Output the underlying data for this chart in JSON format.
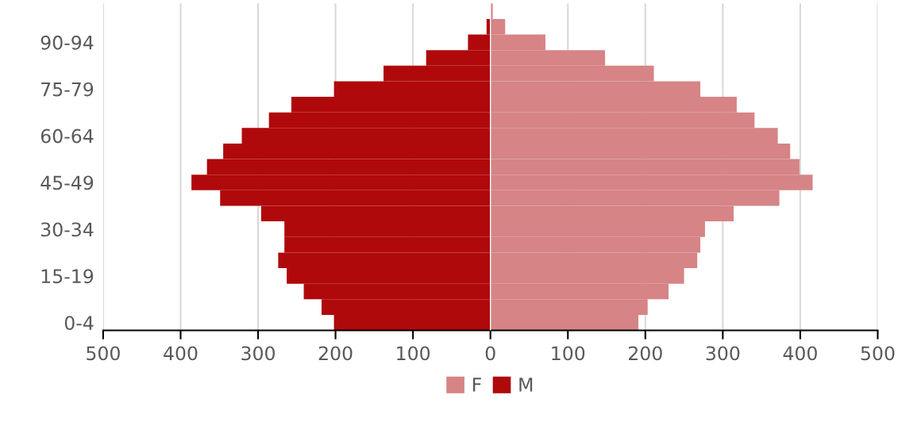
{
  "chart_data": {
    "type": "bar",
    "orientation": "horizontal",
    "categories": [
      null,
      null,
      "90-94",
      null,
      null,
      "75-79",
      null,
      null,
      "60-64",
      null,
      null,
      "45-49",
      null,
      null,
      "30-34",
      null,
      null,
      "15-19",
      null,
      null,
      "0-4"
    ],
    "series": [
      {
        "name": "F",
        "color": "#d68486",
        "values": [
          3,
          19,
          71,
          148,
          211,
          271,
          318,
          341,
          371,
          387,
          399,
          416,
          373,
          314,
          277,
          271,
          267,
          250,
          230,
          203,
          191
        ]
      },
      {
        "name": "M",
        "color": "#b0090c",
        "values": [
          null,
          -5,
          -29,
          -83,
          -138,
          -202,
          -257,
          -286,
          -321,
          -345,
          -366,
          -386,
          -349,
          -296,
          -266,
          -266,
          -274,
          -263,
          -241,
          -218,
          -202
        ]
      }
    ],
    "xlim": [
      -500,
      500
    ],
    "xticks": [
      {
        "value": -500,
        "label": "500"
      },
      {
        "value": -400,
        "label": "400"
      },
      {
        "value": -300,
        "label": "300"
      },
      {
        "value": -200,
        "label": "200"
      },
      {
        "value": -100,
        "label": "100"
      },
      0,
      100,
      200,
      300,
      400,
      500
    ],
    "stacked": true,
    "grid": "x",
    "legend": "bottom"
  }
}
